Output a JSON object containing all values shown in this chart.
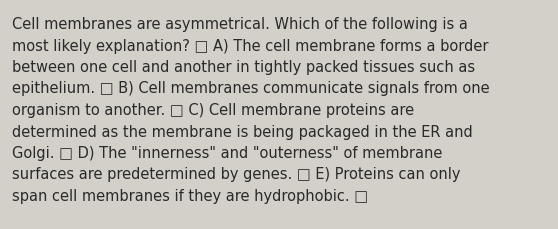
{
  "background_color": "#d3cfc9",
  "text_color": "#2a2a2a",
  "font_size": 10.5,
  "font_family": "DejaVu Sans",
  "text": "Cell membranes are asymmetrical. Which of the following is a\nmost likely explanation? □ A) The cell membrane forms a border\nbetween one cell and another in tightly packed tissues such as\nepithelium. □ B) Cell membranes communicate signals from one\norganism to another. □ C) Cell membrane proteins are\ndetermined as the membrane is being packaged in the ER and\nGolgi. □ D) The \"innerness\" and \"outerness\" of membrane\nsurfaces are predetermined by genes. □ E) Proteins can only\nspan cell membranes if they are hydrophobic. □"
}
